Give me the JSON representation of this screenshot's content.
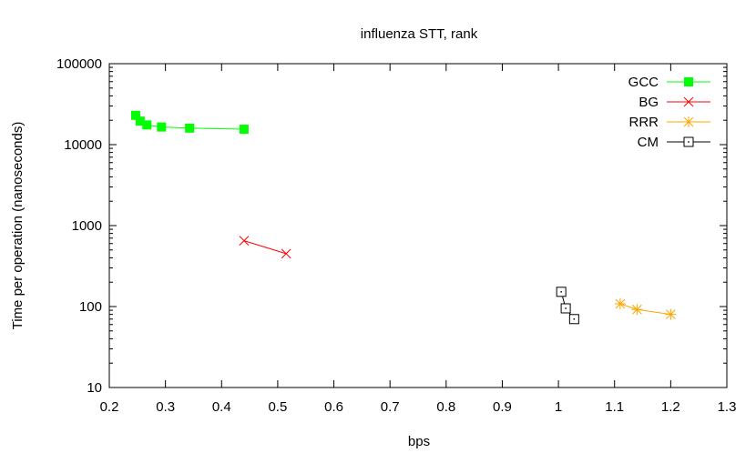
{
  "chart_data": {
    "type": "scatter",
    "title": "influenza STT, rank",
    "xlabel": "bps",
    "ylabel": "Time per operation (nanoseconds)",
    "xlim": [
      0.2,
      1.3
    ],
    "ylim": [
      10,
      100000
    ],
    "yscale": "log",
    "grid": false,
    "legend_position": "top-right",
    "x_ticks": [
      0.2,
      0.3,
      0.4,
      0.5,
      0.6,
      0.7,
      0.8,
      0.9,
      1.0,
      1.1,
      1.2,
      1.3
    ],
    "x_tick_labels": [
      "0.2",
      "0.3",
      "0.4",
      "0.5",
      "0.6",
      "0.7",
      "0.8",
      "0.9",
      "1",
      "1.1",
      "1.2",
      "1.3"
    ],
    "y_ticks": [
      10,
      100,
      1000,
      10000,
      100000
    ],
    "y_tick_labels": [
      "10",
      "100",
      "1000",
      "10000",
      "100000"
    ],
    "series": [
      {
        "name": "GCC",
        "color": "#00ff00",
        "marker": "filled-square",
        "points": [
          [
            0.247,
            23000
          ],
          [
            0.255,
            19500
          ],
          [
            0.267,
            17500
          ],
          [
            0.293,
            16500
          ],
          [
            0.343,
            16000
          ],
          [
            0.44,
            15500
          ]
        ]
      },
      {
        "name": "BG",
        "color": "#ff0000",
        "marker": "x",
        "points": [
          [
            0.44,
            650
          ],
          [
            0.515,
            450
          ]
        ]
      },
      {
        "name": "RRR",
        "color": "#ffa500",
        "marker": "star",
        "points": [
          [
            1.11,
            108
          ],
          [
            1.14,
            92
          ],
          [
            1.2,
            80
          ]
        ]
      },
      {
        "name": "CM",
        "color": "#000000",
        "marker": "dotted-square",
        "points": [
          [
            1.005,
            152
          ],
          [
            1.013,
            95
          ],
          [
            1.028,
            70
          ]
        ]
      }
    ]
  }
}
